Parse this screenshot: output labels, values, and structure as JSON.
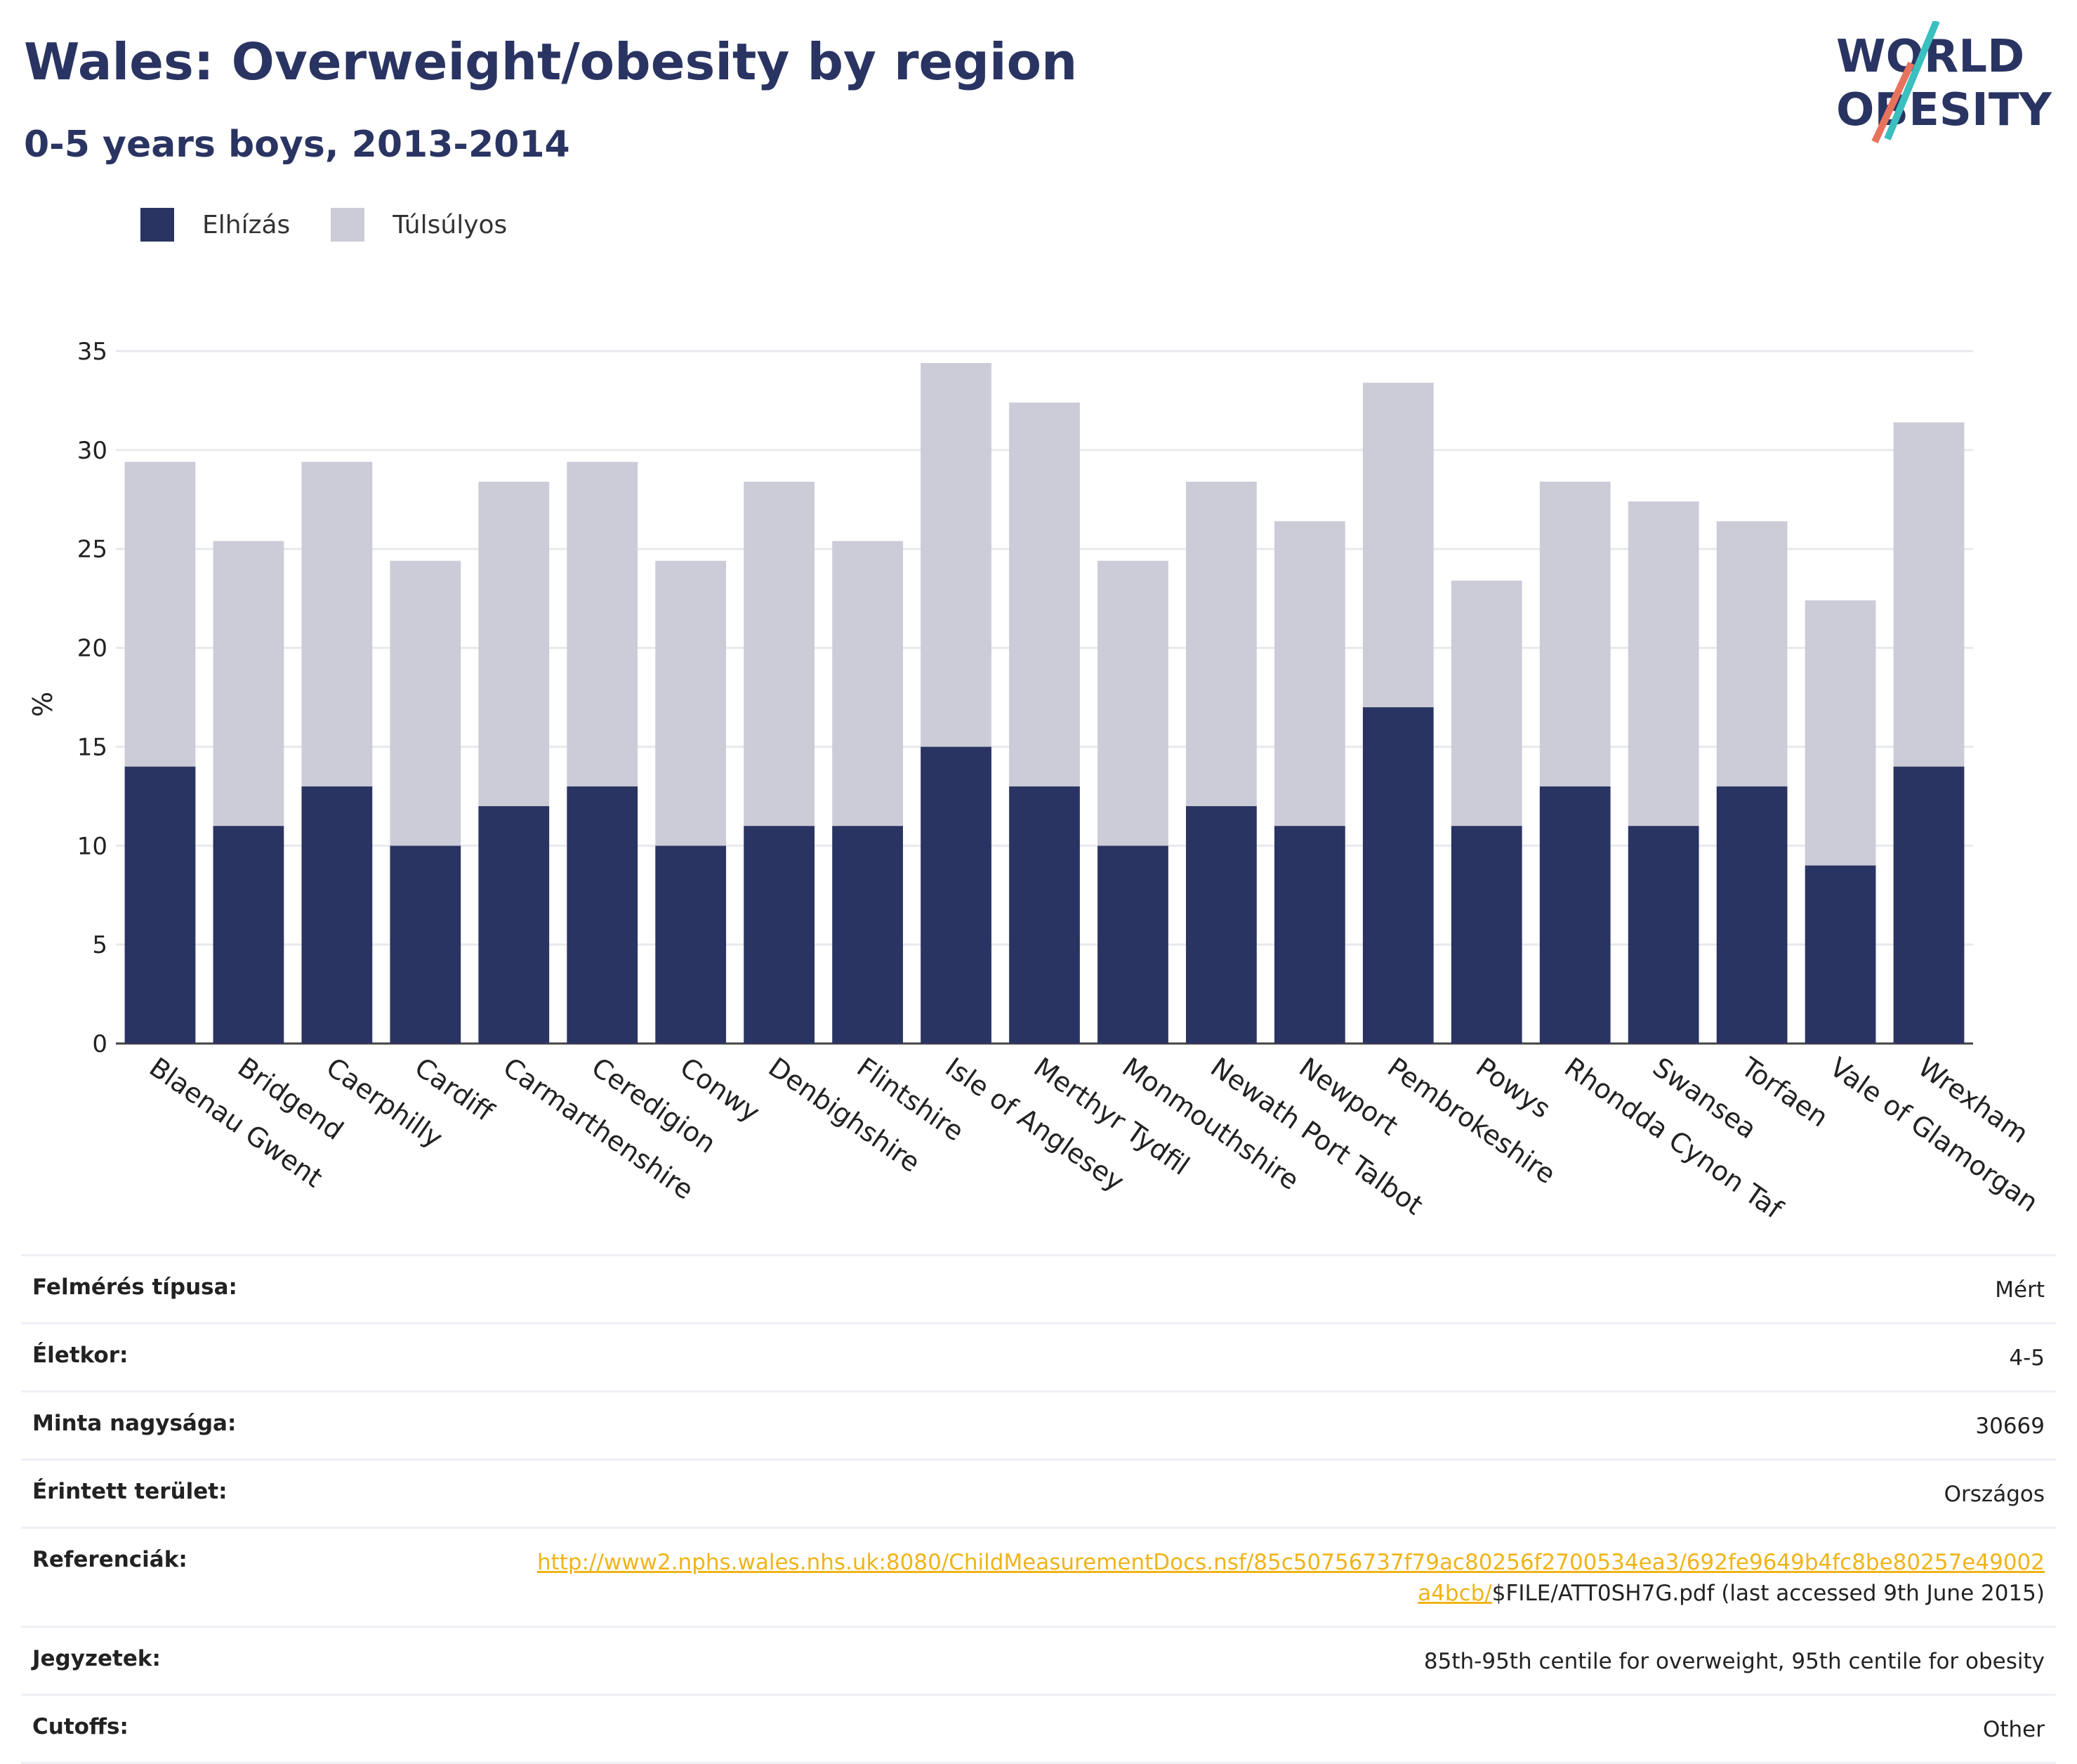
{
  "header": {
    "title": "Wales: Overweight/obesity by region",
    "subtitle": "0-5 years boys, 2013-2014"
  },
  "logo": {
    "line1": "WORLD",
    "line2": "OBESITY"
  },
  "colors": {
    "obesity": "#2a3462",
    "overweight": "#cbccd7",
    "brand_teal": "#3bbfbf",
    "brand_coral": "#e8735d",
    "link": "#f0b418"
  },
  "chart_data": {
    "type": "bar",
    "stacked": true,
    "categories": [
      "Blaenau Gwent",
      "Bridgend",
      "Caerphilly",
      "Cardiff",
      "Carmarthenshire",
      "Ceredigion",
      "Conwy",
      "Denbighshire",
      "Flintshire",
      "Isle of Anglesey",
      "Merthyr Tydfil",
      "Monmouthshire",
      "Newath Port Talbot",
      "Newport",
      "Pembrokeshire",
      "Powys",
      "Rhondda Cynon Taf",
      "Swansea",
      "Torfaen",
      "Vale of Glamorgan",
      "Wrexham"
    ],
    "series": [
      {
        "name": "Elhízás",
        "color": "#2a3462",
        "values": [
          14,
          11,
          13,
          10,
          12,
          13,
          10,
          11,
          11,
          15,
          13,
          10,
          12,
          11,
          17,
          11,
          13,
          11,
          13,
          9,
          14
        ]
      },
      {
        "name": "Túlsúlyos",
        "color": "#cbccd7",
        "values": [
          15.4,
          14.4,
          16.4,
          14.4,
          16.4,
          16.4,
          14.4,
          17.4,
          14.4,
          19.4,
          19.4,
          14.4,
          16.4,
          15.4,
          16.4,
          12.4,
          15.4,
          16.4,
          13.4,
          13.4,
          17.4
        ]
      }
    ],
    "ylabel": "%",
    "xlabel": "",
    "ylim": [
      0,
      35
    ],
    "yticks": [
      0,
      5,
      10,
      15,
      20,
      25,
      30,
      35
    ],
    "grid": true,
    "legend_position": "top-left"
  },
  "info": {
    "survey_type": {
      "label": "Felmérés típusa:",
      "value": "Mért"
    },
    "age": {
      "label": "Életkor:",
      "value": "4-5"
    },
    "sample_size": {
      "label": "Minta nagysága:",
      "value": "30669"
    },
    "area": {
      "label": "Érintett terület:",
      "value": "Országos"
    },
    "references": {
      "label": "Referenciák:",
      "link": "http://www2.nphs.wales.nhs.uk:8080/ChildMeasurementDocs.nsf/85c50756737f79ac80256f2700534ea3/692fe9649b4fc8be80257e49002a4bcb/",
      "suffix": "$FILE/ATT0SH7G.pdf (last accessed 9th June 2015)"
    },
    "notes": {
      "label": "Jegyzetek:",
      "value": "85th-95th centile for overweight, 95th centile for obesity"
    },
    "cutoffs": {
      "label": "Cutoffs:",
      "value": "Other"
    }
  }
}
